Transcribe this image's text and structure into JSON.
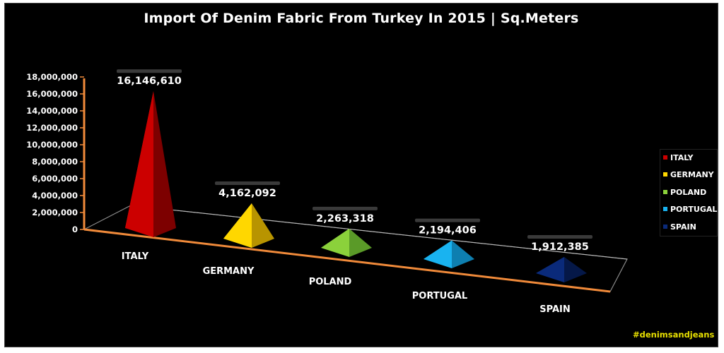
{
  "chart_data": {
    "type": "bar",
    "title": "Import Of Denim Fabric From Turkey In 2015 | Sq.Meters",
    "categories": [
      "ITALY",
      "GERMANY",
      "POLAND",
      "PORTUGAL",
      "SPAIN"
    ],
    "values": [
      16146610,
      4162092,
      2263318,
      2194406,
      1912385
    ],
    "value_labels": [
      "16,146,610",
      "4,162,092",
      "2,263,318",
      "2,194,406",
      "1,912,385"
    ],
    "yticks": [
      "0",
      "2,000,000",
      "4,000,000",
      "6,000,000",
      "8,000,000",
      "10,000,000",
      "12,000,000",
      "14,000,000",
      "16,000,000",
      "18,000,000"
    ],
    "ylim": [
      0,
      18000000
    ],
    "xlabel": "",
    "ylabel": "",
    "shape": "pyramid-3d",
    "legend_position": "right",
    "colors": [
      "#cc0000",
      "#ffd700",
      "#8bd13b",
      "#19b3f0",
      "#0a2a7a"
    ],
    "dark_colors": [
      "#7d0000",
      "#b89400",
      "#5a9a28",
      "#0e7fb0",
      "#051848"
    ],
    "light_colors": [
      "#e01010",
      "#ffe040",
      "#a8e060",
      "#4fd0ff",
      "#12348c"
    ]
  },
  "legend": {
    "items": [
      "ITALY",
      "GERMANY",
      "POLAND",
      "PORTUGAL",
      "SPAIN"
    ]
  },
  "footer": {
    "hashtag": "#denimsandjeans"
  }
}
